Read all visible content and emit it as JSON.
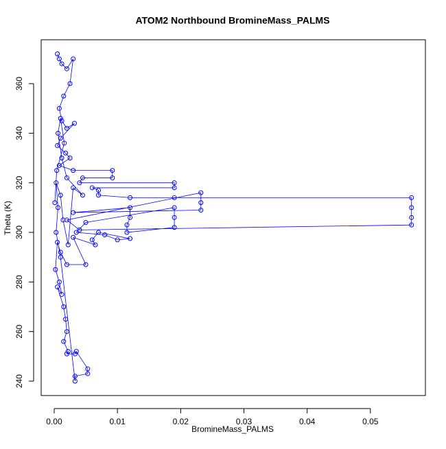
{
  "chart_data": {
    "type": "line",
    "title": "ATOM2 Northbound BromineMass_PALMS",
    "x_label": "BromineMass_PALMS",
    "y_label": "Theta (K)",
    "xlim": [
      -0.00206,
      0.0587
    ],
    "ylim": [
      234.2,
      377.7
    ],
    "xticks": [
      {
        "value": 0,
        "label": "0.00"
      },
      0.01,
      0.02,
      0.03,
      0.04,
      0.05
    ],
    "yticks": [
      240,
      260,
      280,
      300,
      320,
      340,
      360
    ],
    "markers": true,
    "series": [
      {
        "color": "#0000ff",
        "x": [
          0.0005,
          0.0008,
          0.0012,
          0.002,
          0.003,
          0.0025,
          0.0015,
          0.0008,
          0.0012,
          0.002,
          0.0032,
          0.001,
          0.0005,
          0.0018,
          0.0025,
          0.0008,
          0.003,
          0.0092,
          0.0092,
          0.0045,
          0.004,
          0.019,
          0.019,
          0.006,
          0.007,
          0.007,
          0.012,
          0.019,
          0.0565,
          0.0565,
          0.0565,
          0.0565,
          0.004,
          0.002,
          0.0232,
          0.0232,
          0.0232,
          0.003,
          0.012,
          0.012,
          0.0115,
          0.0115,
          0.019,
          0.019,
          0.019,
          0.005,
          0.0035,
          0.008,
          0.01,
          0.012,
          0.007,
          0.006,
          0.0065,
          0.003,
          0.005,
          0.002,
          0.001,
          0.0005,
          0.0002,
          0.0008,
          0.0012,
          0.0005,
          0.0015,
          0.0018,
          0.002,
          0.0015,
          0.0022,
          0.002,
          0.0033,
          0.0035,
          0.0053,
          0.0053,
          0.0033,
          0.0033,
          0.001,
          0.0003,
          0.0006,
          0.0003,
          0.001,
          0.0014,
          0.0022,
          0.003,
          0.0045,
          0.002,
          0.0012,
          0.0006,
          0.001,
          0.0016,
          0.0004,
          0.0001
        ],
        "values": [
          372,
          370,
          368,
          366,
          370,
          360,
          355,
          350,
          345,
          342,
          344,
          338,
          335,
          332,
          330,
          327,
          325,
          325,
          322,
          322,
          320,
          320,
          318,
          318,
          317,
          315,
          314,
          314,
          314,
          310,
          306,
          303,
          301,
          305,
          316,
          312,
          309,
          308,
          310,
          306,
          303,
          300,
          302,
          306,
          310,
          304,
          300,
          299,
          297,
          297.5,
          300,
          297,
          295,
          298,
          287,
          287,
          292,
          296,
          285,
          280,
          275,
          278,
          270,
          265,
          260,
          256,
          252,
          251,
          251,
          252,
          245,
          243,
          242,
          240,
          290,
          300,
          310,
          320,
          315,
          305,
          295,
          318,
          315,
          322,
          330,
          340,
          346,
          336,
          325,
          312
        ]
      }
    ]
  }
}
